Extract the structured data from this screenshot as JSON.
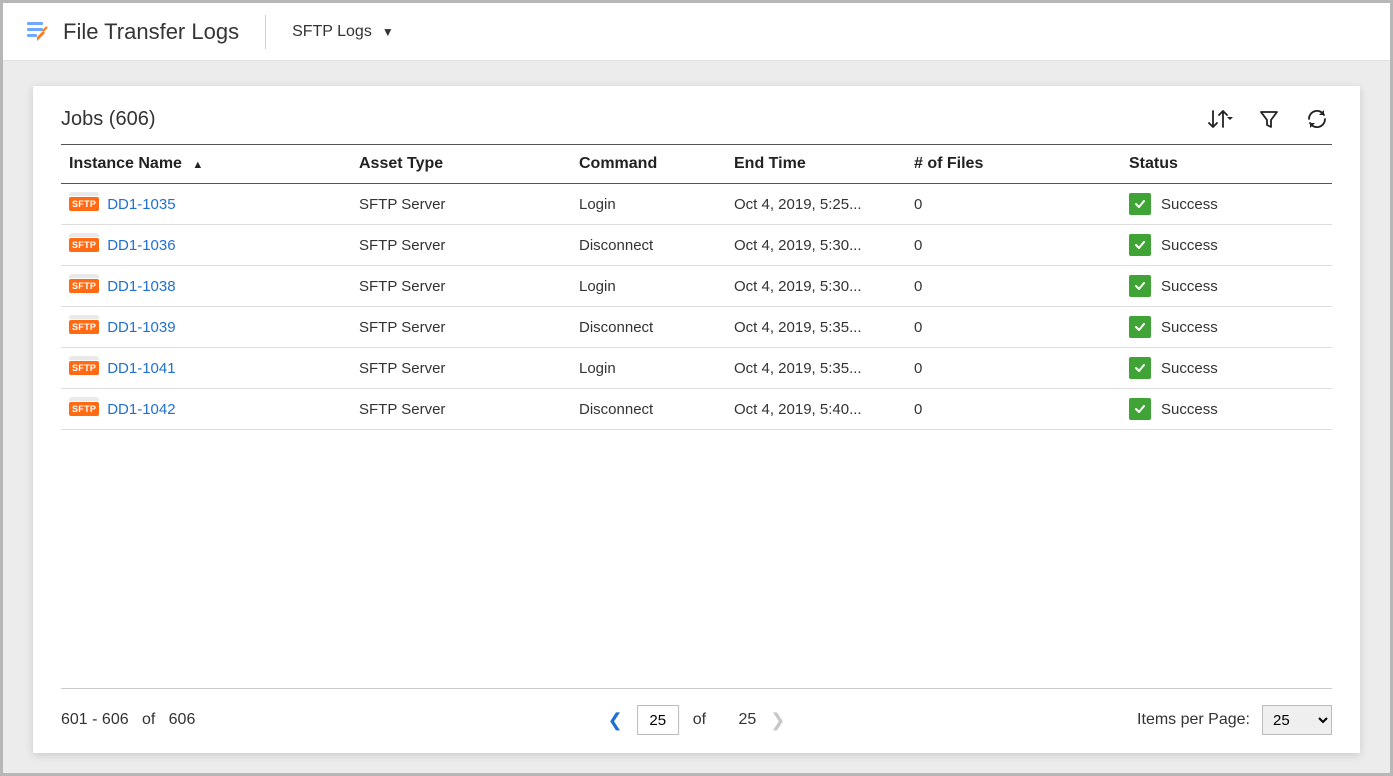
{
  "header": {
    "title": "File Transfer Logs",
    "dropdown_label": "SFTP Logs"
  },
  "panel": {
    "title": "Jobs (606)"
  },
  "table": {
    "columns": {
      "instance": "Instance Name",
      "asset": "Asset Type",
      "command": "Command",
      "end": "End Time",
      "files": "# of Files",
      "status": "Status"
    },
    "sorted_column": "instance",
    "rows": [
      {
        "badge": "SFTP",
        "instance": "DD1-1035",
        "asset": "SFTP Server",
        "command": "Login",
        "end": "Oct 4, 2019, 5:25...",
        "files": "0",
        "status": "Success"
      },
      {
        "badge": "SFTP",
        "instance": "DD1-1036",
        "asset": "SFTP Server",
        "command": "Disconnect",
        "end": "Oct 4, 2019, 5:30...",
        "files": "0",
        "status": "Success"
      },
      {
        "badge": "SFTP",
        "instance": "DD1-1038",
        "asset": "SFTP Server",
        "command": "Login",
        "end": "Oct 4, 2019, 5:30...",
        "files": "0",
        "status": "Success"
      },
      {
        "badge": "SFTP",
        "instance": "DD1-1039",
        "asset": "SFTP Server",
        "command": "Disconnect",
        "end": "Oct 4, 2019, 5:35...",
        "files": "0",
        "status": "Success"
      },
      {
        "badge": "SFTP",
        "instance": "DD1-1041",
        "asset": "SFTP Server",
        "command": "Login",
        "end": "Oct 4, 2019, 5:35...",
        "files": "0",
        "status": "Success"
      },
      {
        "badge": "SFTP",
        "instance": "DD1-1042",
        "asset": "SFTP Server",
        "command": "Disconnect",
        "end": "Oct 4, 2019, 5:40...",
        "files": "0",
        "status": "Success"
      }
    ]
  },
  "pagination": {
    "range_from": "601",
    "range_to": "606",
    "total": "606",
    "current_page": "25",
    "total_pages": "25",
    "of_label": "of",
    "items_per_page_label": "Items per Page:",
    "items_per_page": "25",
    "range_separator": " - "
  },
  "colors": {
    "link": "#1f70d1",
    "badge_bg": "#ff6a13",
    "success_bg": "#3fa335"
  }
}
